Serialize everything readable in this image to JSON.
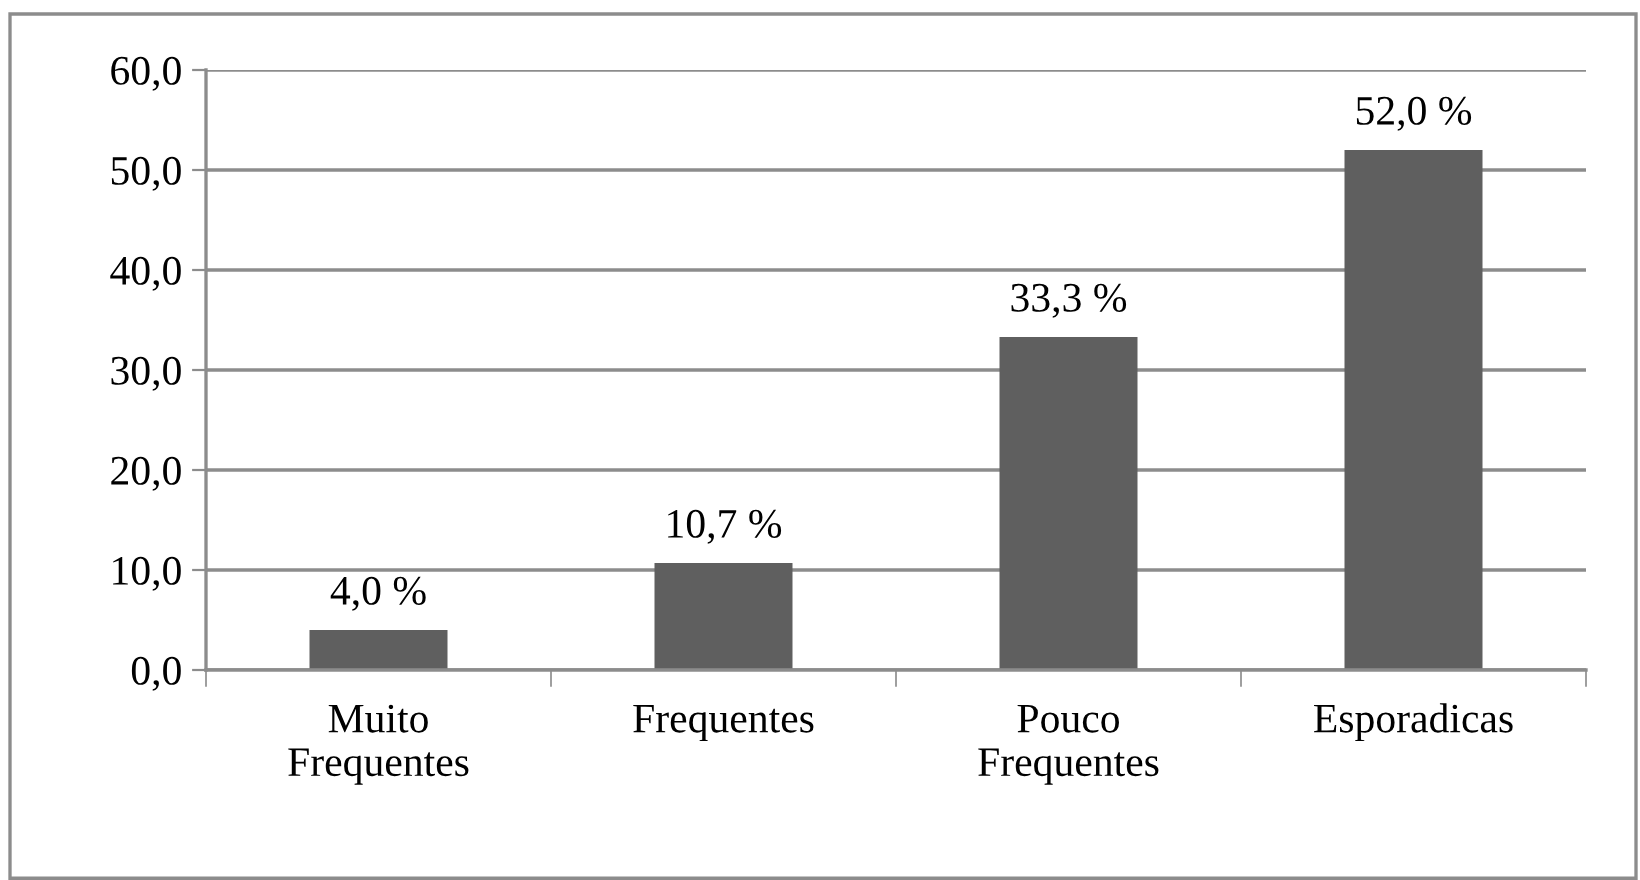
{
  "chart_data": {
    "type": "bar",
    "categories": [
      "Muito\nFrequentes",
      "Frequentes",
      "Pouco\nFrequentes",
      "Esporadicas"
    ],
    "values": [
      4.0,
      10.7,
      33.3,
      52.0
    ],
    "value_labels": [
      "4,0 %",
      "10,7 %",
      "33,3 %",
      "52,0 %"
    ],
    "color": "#5f5f5f",
    "ylim": [
      0,
      60
    ],
    "yticks": [
      {
        "value": 0,
        "label": "0,0"
      },
      {
        "value": 10,
        "label": "10,0"
      },
      {
        "value": 20,
        "label": "20,0"
      },
      {
        "value": 30,
        "label": "30,0"
      },
      {
        "value": 40,
        "label": "40,0"
      },
      {
        "value": 50,
        "label": "50,0"
      },
      {
        "value": 60,
        "label": "60,0"
      }
    ],
    "grid": "y"
  }
}
